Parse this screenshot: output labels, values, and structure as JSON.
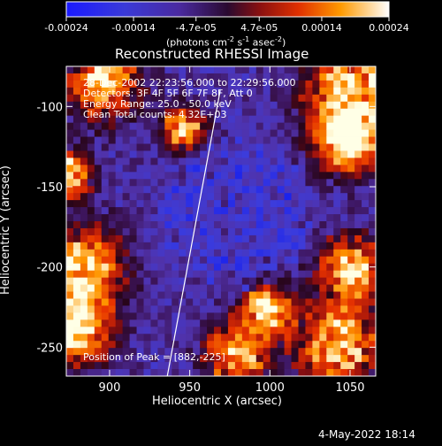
{
  "chart_data": {
    "type": "heatmap",
    "title": "Reconstructed RHESSI Image",
    "xlabel": "Heliocentric X (arcsec)",
    "ylabel": "Heliocentric Y (arcsec)",
    "xlim": [
      873,
      1066
    ],
    "ylim": [
      -268,
      -75
    ],
    "x_ticks": [
      900,
      950,
      1000,
      1050
    ],
    "y_ticks": [
      -100,
      -150,
      -200,
      -250
    ],
    "colorbar": {
      "range": [
        -0.00024,
        0.00024
      ],
      "ticks": [
        {
          "value": -0.00024,
          "label": "-0.00024"
        },
        {
          "value": -0.00014,
          "label": "-0.00014"
        },
        {
          "value": -4.7e-05,
          "label": "-4.7e-05"
        },
        {
          "value": 4.7e-05,
          "label": "4.7e-05"
        },
        {
          "value": 0.00014,
          "label": "0.00014"
        },
        {
          "value": 0.00024,
          "label": "0.00024"
        }
      ],
      "unit_label": "(photons cm",
      "unit_sup1": "-2",
      "unit_mid": " s",
      "unit_sup2": "-1",
      "unit_end": " asec",
      "unit_sup3": "-2",
      "unit_close": ")"
    },
    "annotations": [
      "28-Dec-2002 22:23:56.000 to 22:29:56.000",
      "Detectors: 3F 4F 5F 6F 7F 8F, Att 0",
      "Energy Range: 25.0 - 50.0 keV",
      "Clean      Total counts: 4.32E+03"
    ],
    "peak_label": "Position of Peak = [882,-225]",
    "limb_line": [
      {
        "x": 936,
        "y": -268
      },
      {
        "x": 969,
        "y": -90
      }
    ],
    "grid": false
  },
  "footer": {
    "date": "4-May-2022 18:14"
  }
}
